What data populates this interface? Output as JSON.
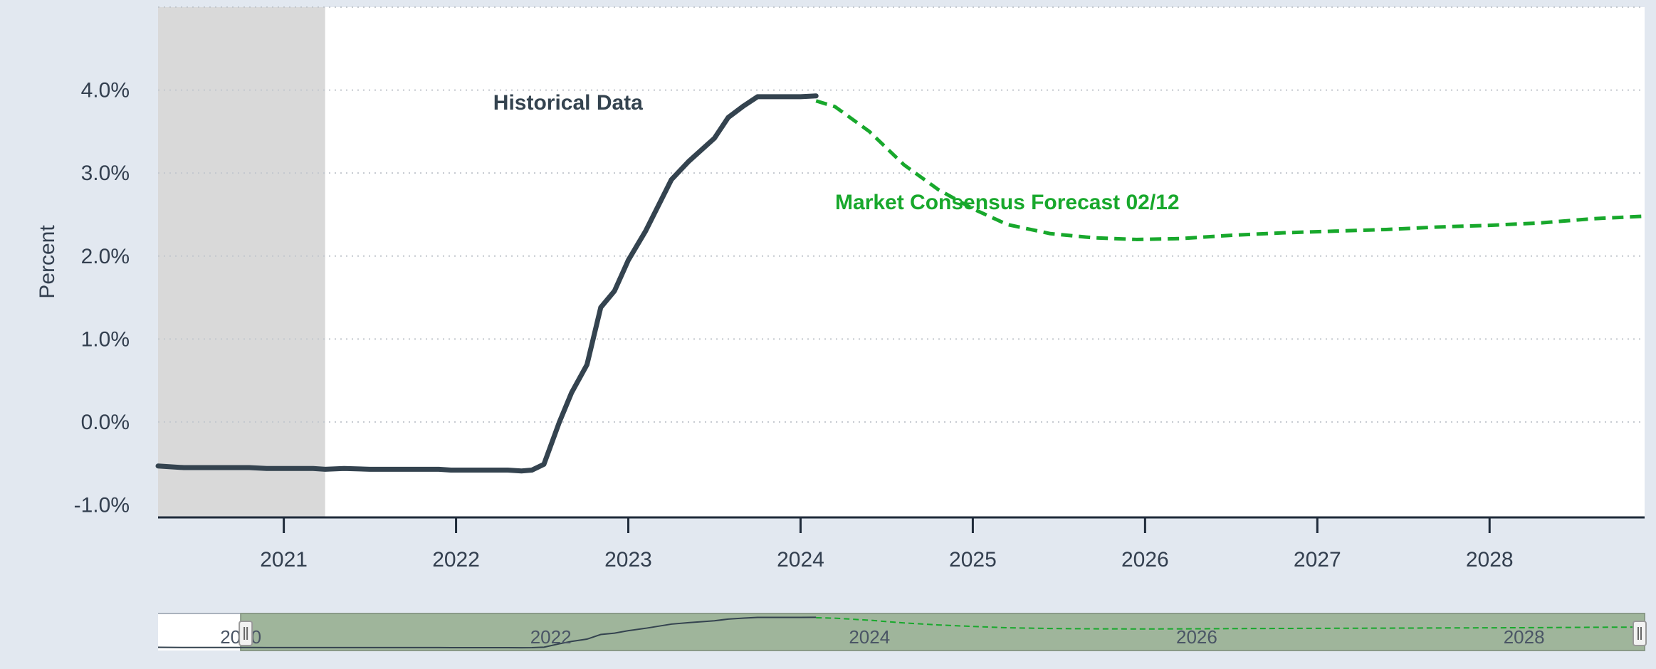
{
  "chart_data": {
    "type": "line",
    "ylabel": "Percent",
    "ylim": [
      -1.15,
      5.0
    ],
    "yticks": [
      -1.0,
      0.0,
      1.0,
      2.0,
      3.0,
      4.0
    ],
    "ytick_labels": [
      "-1.0%",
      "0.0%",
      "1.0%",
      "2.0%",
      "3.0%",
      "4.0%"
    ],
    "xlim": [
      2020.27,
      2028.9
    ],
    "xticks": [
      2021,
      2022,
      2023,
      2024,
      2025,
      2026,
      2027,
      2028
    ],
    "xtick_labels": [
      "2021",
      "2022",
      "2023",
      "2024",
      "2025",
      "2026",
      "2027",
      "2028"
    ],
    "grid": true,
    "shaded_range": [
      2020.27,
      2021.24
    ],
    "series": [
      {
        "name": "Historical Data",
        "color": "#34434f",
        "style": "solid",
        "x": [
          2020.27,
          2020.42,
          2020.6,
          2020.8,
          2020.9,
          2021.0,
          2021.17,
          2021.24,
          2021.35,
          2021.5,
          2021.6,
          2021.9,
          2021.97,
          2022.2,
          2022.3,
          2022.38,
          2022.44,
          2022.51,
          2022.6,
          2022.67,
          2022.76,
          2022.84,
          2022.92,
          2023.0,
          2023.1,
          2023.25,
          2023.35,
          2023.5,
          2023.58,
          2023.67,
          2023.75,
          2023.85,
          2024.0,
          2024.09
        ],
        "y": [
          -0.53,
          -0.55,
          -0.55,
          -0.55,
          -0.56,
          -0.56,
          -0.56,
          -0.57,
          -0.56,
          -0.57,
          -0.57,
          -0.57,
          -0.58,
          -0.58,
          -0.58,
          -0.59,
          -0.58,
          -0.51,
          0.0,
          0.35,
          0.69,
          1.38,
          1.58,
          1.95,
          2.3,
          2.92,
          3.14,
          3.42,
          3.67,
          3.81,
          3.92,
          3.92,
          3.92,
          3.93
        ]
      },
      {
        "name": "Market Consensus Forecast 02/12",
        "color": "#18a82c",
        "style": "dashed",
        "x": [
          2024.09,
          2024.2,
          2024.4,
          2024.6,
          2024.8,
          2025.0,
          2025.2,
          2025.45,
          2025.7,
          2025.95,
          2026.2,
          2026.5,
          2026.8,
          2027.1,
          2027.4,
          2027.7,
          2028.0,
          2028.3,
          2028.6,
          2028.9
        ],
        "y": [
          3.87,
          3.8,
          3.5,
          3.1,
          2.8,
          2.57,
          2.38,
          2.27,
          2.22,
          2.2,
          2.21,
          2.25,
          2.28,
          2.3,
          2.32,
          2.35,
          2.37,
          2.4,
          2.45,
          2.48
        ]
      }
    ],
    "annotations": [
      {
        "text": "Historical Data",
        "x": 2022.65,
        "y": 3.85,
        "color": "#34434f"
      },
      {
        "text": "Market Consensus Forecast 02/12",
        "x": 2025.2,
        "y": 2.65,
        "color": "#18a82c"
      }
    ],
    "navigator": {
      "xlim": [
        2020.27,
        2028.9
      ],
      "selected": [
        2020.75,
        2028.9
      ],
      "ylim": [
        -1.0,
        4.5
      ],
      "tick_x": [
        2020.75,
        2022.55,
        2024.4,
        2026.3,
        2028.2
      ],
      "tick_labels": [
        "2020",
        "2022",
        "2024",
        "2026",
        "2028"
      ]
    }
  }
}
